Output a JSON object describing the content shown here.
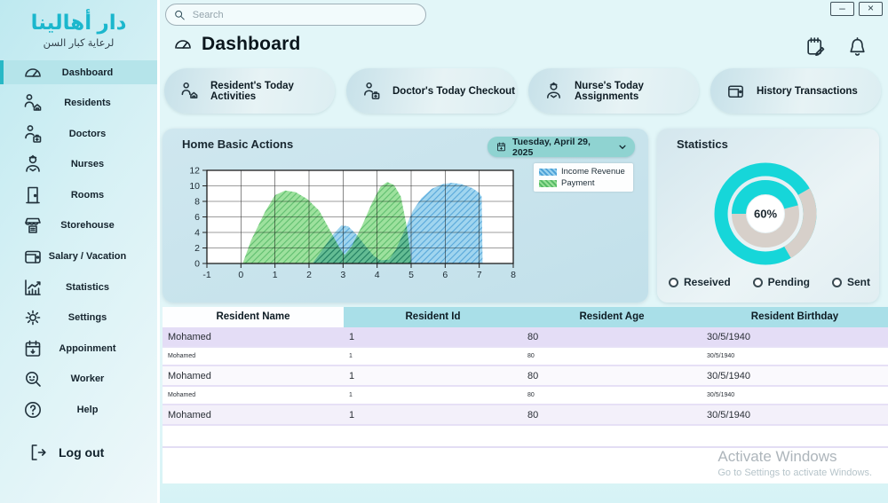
{
  "window": {
    "minimize_label": "–",
    "close_label": "×"
  },
  "search": {
    "placeholder": "Search"
  },
  "header": {
    "title": "Dashboard"
  },
  "sidebar": {
    "logo_title": "دار أهالينا",
    "logo_subtitle": "لرعاية كبار السن",
    "items": [
      {
        "label": "Dashboard",
        "icon": "gauge-icon",
        "active": true
      },
      {
        "label": "Residents",
        "icon": "resident-home-icon",
        "active": false
      },
      {
        "label": "Doctors",
        "icon": "doctor-icon",
        "active": false
      },
      {
        "label": "Nurses",
        "icon": "nurse-icon",
        "active": false
      },
      {
        "label": "Rooms",
        "icon": "door-icon",
        "active": false
      },
      {
        "label": "Storehouse",
        "icon": "storehouse-icon",
        "active": false
      },
      {
        "label": "Salary / Vacation",
        "icon": "wallet-icon",
        "active": false
      },
      {
        "label": "Statistics",
        "icon": "chart-up-icon",
        "active": false
      },
      {
        "label": "Settings",
        "icon": "gear-icon",
        "active": false
      },
      {
        "label": "Appoinment",
        "icon": "calendar-icon",
        "active": false
      },
      {
        "label": "Worker",
        "icon": "worker-icon",
        "active": false
      },
      {
        "label": "Help",
        "icon": "help-icon",
        "active": false
      }
    ],
    "logout_label": "Log out"
  },
  "cards": [
    {
      "label": "Resident's Today Activities",
      "icon": "resident-home-icon"
    },
    {
      "label": "Doctor's Today Checkout",
      "icon": "doctor-icon"
    },
    {
      "label": "Nurse's Today Assignments",
      "icon": "nurse-icon"
    },
    {
      "label": "History Transactions",
      "icon": "wallet-icon"
    }
  ],
  "home_panel": {
    "title": "Home Basic Actions",
    "date_label": "Tuesday, April 29, 2025"
  },
  "chart_data": [
    {
      "type": "area",
      "title": "Home Basic Actions",
      "xlabel": "",
      "ylabel": "",
      "x_range": [
        -1,
        8
      ],
      "y_range": [
        0,
        12
      ],
      "x_ticks": [
        -1,
        0,
        1,
        2,
        3,
        4,
        5,
        6,
        7,
        8
      ],
      "y_ticks": [
        0,
        2,
        4,
        6,
        8,
        10,
        12
      ],
      "grid": true,
      "legend_position": "top-right",
      "series": [
        {
          "name": "Payment",
          "base_color": "#98e098",
          "hatch_color": "#57bb67",
          "points": [
            [
              0.05,
              0
            ],
            [
              0.3,
              3
            ],
            [
              0.7,
              6.6
            ],
            [
              1.0,
              8.8
            ],
            [
              1.3,
              9.4
            ],
            [
              1.6,
              9.2
            ],
            [
              1.95,
              8.3
            ],
            [
              2.3,
              6.8
            ],
            [
              2.6,
              4.4
            ],
            [
              2.9,
              2.0
            ],
            [
              3.05,
              1.1
            ],
            [
              3.25,
              2.2
            ],
            [
              3.55,
              4.8
            ],
            [
              3.85,
              7.8
            ],
            [
              4.1,
              9.9
            ],
            [
              4.3,
              10.5
            ],
            [
              4.5,
              10.1
            ],
            [
              4.7,
              8.6
            ],
            [
              4.85,
              5.2
            ],
            [
              4.97,
              1.6
            ],
            [
              5.0,
              0
            ]
          ]
        },
        {
          "name": "Income Revenue",
          "base_color": "#9bd3ef",
          "hatch_color": "#4fa3d8",
          "points": [
            [
              2.1,
              0
            ],
            [
              2.4,
              1.8
            ],
            [
              2.7,
              3.7
            ],
            [
              2.95,
              4.9
            ],
            [
              3.15,
              4.8
            ],
            [
              3.4,
              3.7
            ],
            [
              3.65,
              2.3
            ],
            [
              3.9,
              1.0
            ],
            [
              4.1,
              0.4
            ],
            [
              4.35,
              0.5
            ],
            [
              4.55,
              1.8
            ],
            [
              4.8,
              4.2
            ],
            [
              5.05,
              6.8
            ],
            [
              5.3,
              8.4
            ],
            [
              5.6,
              9.6
            ],
            [
              5.9,
              10.2
            ],
            [
              6.2,
              10.4
            ],
            [
              6.5,
              10.2
            ],
            [
              6.8,
              9.7
            ],
            [
              7.0,
              9.1
            ],
            [
              7.07,
              8.6
            ],
            [
              7.1,
              0
            ]
          ]
        }
      ],
      "legend": [
        "Income Revenue",
        "Payment"
      ]
    },
    {
      "type": "donut",
      "title": "Statistics",
      "center_label": "60%",
      "value_color": "#16d6d9",
      "rest_color": "#d7d0ca",
      "outer_ring": {
        "rest_from_deg": 60,
        "rest_to_deg": 150
      },
      "inner_ring": {
        "value_from_deg": 270,
        "value_to_deg": 435
      },
      "labels": [
        "Reseived",
        "Pending",
        "Sent"
      ]
    }
  ],
  "statistics": {
    "title": "Statistics",
    "center_label": "60%",
    "options": [
      "Reseived",
      "Pending",
      "Sent"
    ]
  },
  "table": {
    "columns": [
      "Resident Name",
      "Resident Id",
      "Resident Age",
      "Resident Birthday"
    ],
    "rows": [
      [
        "Mohamed",
        "1",
        "80",
        "30/5/1940"
      ],
      [
        "Mohamed",
        "1",
        "80",
        "30/5/1940"
      ],
      [
        "Mohamed",
        "1",
        "80",
        "30/5/1940"
      ],
      [
        "Mohamed",
        "1",
        "80",
        "30/5/1940"
      ],
      [
        "Mohamed",
        "1",
        "80",
        "30/5/1940"
      ]
    ]
  },
  "watermark": {
    "line1": "Activate Windows",
    "line2": "Go to Settings to activate Windows."
  }
}
